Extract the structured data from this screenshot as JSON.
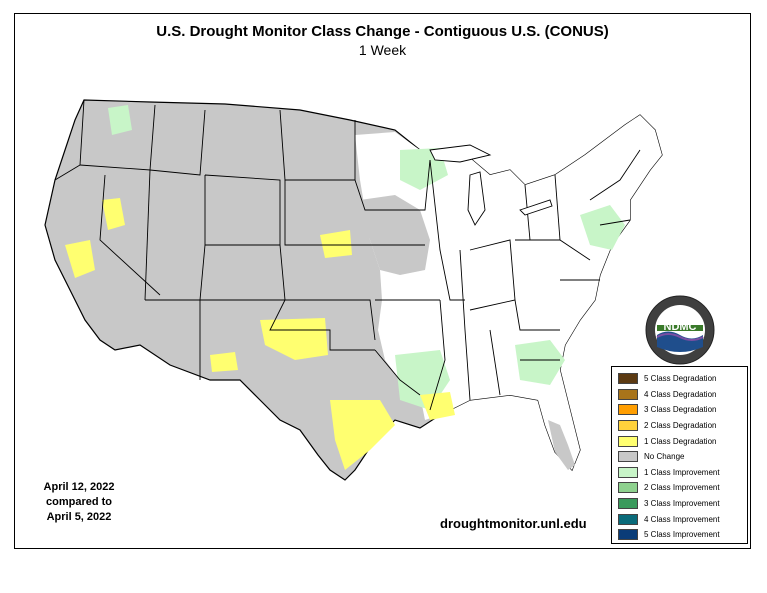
{
  "title": "U.S. Drought Monitor Class Change - Contiguous U.S. (CONUS)",
  "subtitle": "1 Week",
  "date_block": {
    "line1": "April 12, 2022",
    "line2": "compared to",
    "line3": "April 5, 2022"
  },
  "website": "droughtmonitor.unl.edu",
  "logo": {
    "text": "NDMC",
    "ring_text": "NATIONAL DROUGHT MITIGATION CENTER · UNIVERSITY OF NEBRASKA"
  },
  "legend": [
    {
      "label": "5 Class Degradation",
      "color": "#5c3a12"
    },
    {
      "label": "4 Class Degradation",
      "color": "#a8741a"
    },
    {
      "label": "3 Class Degradation",
      "color": "#ff9e00"
    },
    {
      "label": "2 Class Degradation",
      "color": "#ffd23c"
    },
    {
      "label": "1 Class Degradation",
      "color": "#ffff70"
    },
    {
      "label": "No Change",
      "color": "#c8c8c8"
    },
    {
      "label": "1 Class Improvement",
      "color": "#c8f5c8"
    },
    {
      "label": "2 Class Improvement",
      "color": "#8ed18e"
    },
    {
      "label": "3 Class Improvement",
      "color": "#3a9a5c"
    },
    {
      "label": "4 Class Improvement",
      "color": "#0a6b7a"
    },
    {
      "label": "5 Class Improvement",
      "color": "#0a3c78"
    }
  ],
  "map_colors": {
    "no_change": "#c8c8c8",
    "white_area": "#ffffff",
    "degradation_1": "#ffff70",
    "improvement_1": "#c8f5c8",
    "border": "#000000"
  }
}
